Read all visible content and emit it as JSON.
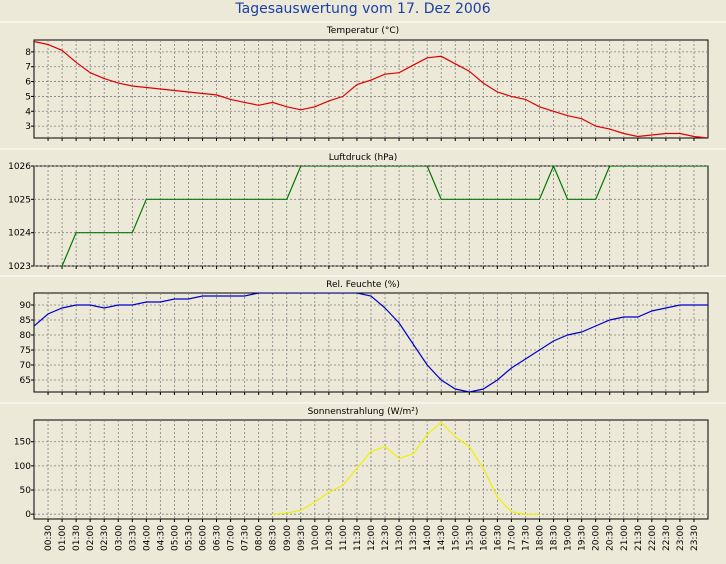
{
  "title": "Tagesauswertung vom 17. Dez 2006",
  "time_labels": [
    "00:30",
    "01:00",
    "01:30",
    "02:00",
    "02:30",
    "03:00",
    "03:30",
    "04:00",
    "04:30",
    "05:00",
    "05:30",
    "06:00",
    "06:30",
    "07:00",
    "07:30",
    "08:00",
    "08:30",
    "09:00",
    "09:30",
    "10:00",
    "10:30",
    "11:00",
    "11:30",
    "12:00",
    "12:30",
    "13:00",
    "13:30",
    "14:00",
    "14:30",
    "15:00",
    "15:30",
    "16:00",
    "16:30",
    "17:00",
    "17:30",
    "18:00",
    "18:30",
    "19:00",
    "19:30",
    "20:00",
    "20:30",
    "21:00",
    "21:30",
    "22:00",
    "22:30",
    "23:00",
    "23:30"
  ],
  "chart_data": [
    {
      "type": "line",
      "title": "Temperatur (°C)",
      "color": "#e00000",
      "ylim": [
        2.2,
        8.8
      ],
      "yticks": [
        3,
        4,
        5,
        6,
        7,
        8
      ],
      "grid": true,
      "x": [
        "00:00",
        "00:30",
        "01:00",
        "01:30",
        "02:00",
        "02:30",
        "03:00",
        "03:30",
        "04:00",
        "04:30",
        "05:00",
        "05:30",
        "06:00",
        "06:30",
        "07:00",
        "07:30",
        "08:00",
        "08:30",
        "09:00",
        "09:30",
        "10:00",
        "10:30",
        "11:00",
        "11:30",
        "12:00",
        "12:30",
        "13:00",
        "13:30",
        "14:00",
        "14:30",
        "15:00",
        "15:30",
        "16:00",
        "16:30",
        "17:00",
        "17:30",
        "18:00",
        "18:30",
        "19:00",
        "19:30",
        "20:00",
        "20:30",
        "21:00",
        "21:30",
        "22:00",
        "22:30",
        "23:00",
        "23:30",
        "24:00"
      ],
      "values": [
        8.7,
        8.5,
        8.1,
        7.3,
        6.6,
        6.2,
        5.9,
        5.7,
        5.6,
        5.5,
        5.4,
        5.3,
        5.2,
        5.1,
        4.8,
        4.6,
        4.4,
        4.6,
        4.3,
        4.1,
        4.3,
        4.7,
        5.0,
        5.8,
        6.1,
        6.5,
        6.6,
        7.1,
        7.6,
        7.7,
        7.2,
        6.7,
        5.9,
        5.3,
        5.0,
        4.8,
        4.3,
        4.0,
        3.7,
        3.5,
        3.0,
        2.8,
        2.5,
        2.3,
        2.4,
        2.5,
        2.5,
        2.3,
        2.2
      ]
    },
    {
      "type": "line",
      "title": "Luftdruck (hPa)",
      "color": "#007800",
      "ylim": [
        1023,
        1026
      ],
      "yticks": [
        1023,
        1024,
        1025,
        1026
      ],
      "grid": true,
      "points": [
        [
          "00:00",
          1022.7
        ],
        [
          "01:00",
          1023
        ],
        [
          "01:30",
          1024
        ],
        [
          "03:30",
          1024
        ],
        [
          "04:00",
          1025
        ],
        [
          "09:00",
          1025
        ],
        [
          "09:30",
          1026
        ],
        [
          "14:00",
          1026
        ],
        [
          "14:30",
          1025
        ],
        [
          "18:00",
          1025
        ],
        [
          "18:30",
          1026
        ],
        [
          "19:00",
          1025
        ],
        [
          "20:00",
          1025
        ],
        [
          "20:30",
          1026
        ],
        [
          "24:00",
          1026
        ]
      ]
    },
    {
      "type": "line",
      "title": "Rel. Feuchte (%)",
      "color": "#0000cc",
      "ylim": [
        61,
        94
      ],
      "yticks": [
        65,
        70,
        75,
        80,
        85,
        90
      ],
      "grid": true,
      "x": [
        "00:00",
        "00:30",
        "01:00",
        "01:30",
        "02:00",
        "02:30",
        "03:00",
        "03:30",
        "04:00",
        "04:30",
        "05:00",
        "05:30",
        "06:00",
        "06:30",
        "07:00",
        "07:30",
        "08:00",
        "08:30",
        "09:00",
        "09:30",
        "10:00",
        "10:30",
        "11:00",
        "11:30",
        "12:00",
        "12:30",
        "13:00",
        "13:30",
        "14:00",
        "14:30",
        "15:00",
        "15:30",
        "16:00",
        "16:30",
        "17:00",
        "17:30",
        "18:00",
        "18:30",
        "19:00",
        "19:30",
        "20:00",
        "20:30",
        "21:00",
        "21:30",
        "22:00",
        "22:30",
        "23:00",
        "23:30",
        "24:00"
      ],
      "values": [
        83,
        87,
        89,
        90,
        90,
        89,
        90,
        90,
        91,
        91,
        92,
        92,
        93,
        93,
        93,
        93,
        94,
        94,
        94,
        94,
        94,
        94,
        94,
        94,
        93,
        89,
        84,
        77,
        70,
        65,
        62,
        61,
        62,
        65,
        69,
        72,
        75,
        78,
        80,
        81,
        83,
        85,
        86,
        86,
        88,
        89,
        90,
        90,
        90
      ]
    },
    {
      "type": "line",
      "title": "Sonnenstrahlung (W/m²)",
      "color": "#f0f000",
      "ylim": [
        -10,
        195
      ],
      "yticks": [
        0,
        50,
        100,
        150
      ],
      "grid": true,
      "x": [
        "08:30",
        "09:00",
        "09:30",
        "10:00",
        "10:30",
        "11:00",
        "11:30",
        "12:00",
        "12:30",
        "13:00",
        "13:30",
        "14:00",
        "14:30",
        "15:00",
        "15:30",
        "16:00",
        "16:30",
        "17:00",
        "17:30",
        "18:00"
      ],
      "values": [
        0,
        2,
        8,
        25,
        45,
        60,
        95,
        130,
        140,
        115,
        125,
        165,
        190,
        160,
        140,
        95,
        35,
        5,
        0,
        0
      ]
    }
  ]
}
